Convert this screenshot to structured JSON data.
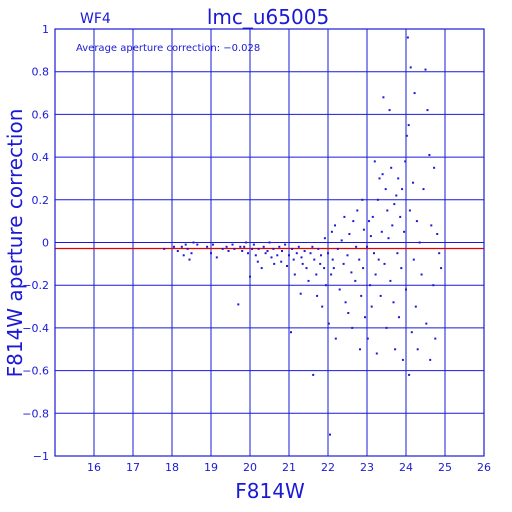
{
  "header": {
    "chip": "WF4",
    "title": "lmc_u65005"
  },
  "annotation": "Average aperture correction:  −0.028",
  "colors": {
    "axes": "#1a1ad6",
    "points": "#1a1ad6",
    "reference_line": "#e60000"
  },
  "chart_data": {
    "type": "scatter",
    "title": "lmc_u65005",
    "subtitle": "WF4",
    "xlabel": "F814W",
    "ylabel": "F814W aperture correction",
    "xlim": [
      15,
      26
    ],
    "ylim": [
      -1,
      1
    ],
    "x_ticks": [
      16,
      17,
      18,
      19,
      20,
      21,
      22,
      23,
      24,
      25,
      26
    ],
    "y_ticks": [
      -1,
      -0.8,
      -0.6,
      -0.4,
      -0.2,
      0,
      0.2,
      0.4,
      0.6,
      0.8,
      1
    ],
    "y_tick_labels": [
      "−1",
      "−0.8",
      "−0.6",
      "−0.4",
      "−0.2",
      "0",
      "0.2",
      "0.4",
      "0.6",
      "0.8",
      "1"
    ],
    "grid": true,
    "reference_lines": [
      0,
      -0.028
    ],
    "average_aperture_correction": -0.028,
    "points": [
      [
        17.8,
        -0.03
      ],
      [
        18.05,
        -0.02
      ],
      [
        18.15,
        -0.04
      ],
      [
        18.25,
        -0.02
      ],
      [
        18.3,
        -0.06
      ],
      [
        18.35,
        -0.01
      ],
      [
        18.4,
        -0.03
      ],
      [
        18.45,
        -0.08
      ],
      [
        18.5,
        -0.05
      ],
      [
        18.55,
        0.0
      ],
      [
        18.65,
        -0.01
      ],
      [
        18.9,
        -0.02
      ],
      [
        19.0,
        -0.05
      ],
      [
        19.05,
        -0.01
      ],
      [
        19.15,
        -0.07
      ],
      [
        19.3,
        -0.03
      ],
      [
        19.4,
        -0.02
      ],
      [
        19.45,
        -0.04
      ],
      [
        19.55,
        -0.01
      ],
      [
        19.6,
        -0.03
      ],
      [
        19.7,
        -0.29
      ],
      [
        19.75,
        -0.02
      ],
      [
        19.8,
        -0.04
      ],
      [
        19.85,
        -0.02
      ],
      [
        19.9,
        0.0
      ],
      [
        19.95,
        -0.05
      ],
      [
        20.0,
        -0.16
      ],
      [
        20.05,
        -0.03
      ],
      [
        20.1,
        -0.01
      ],
      [
        20.15,
        -0.06
      ],
      [
        20.2,
        -0.09
      ],
      [
        20.22,
        -0.03
      ],
      [
        20.3,
        -0.12
      ],
      [
        20.35,
        -0.02
      ],
      [
        20.4,
        -0.05
      ],
      [
        20.45,
        -0.04
      ],
      [
        20.5,
        0.0
      ],
      [
        20.55,
        -0.07
      ],
      [
        20.6,
        -0.03
      ],
      [
        20.62,
        -0.1
      ],
      [
        20.7,
        -0.06
      ],
      [
        20.75,
        -0.02
      ],
      [
        20.8,
        -0.09
      ],
      [
        20.82,
        -0.04
      ],
      [
        20.9,
        -0.01
      ],
      [
        20.95,
        -0.11
      ],
      [
        21.0,
        -0.06
      ],
      [
        21.05,
        -0.42
      ],
      [
        21.08,
        -0.03
      ],
      [
        21.12,
        -0.08
      ],
      [
        21.15,
        -0.15
      ],
      [
        21.2,
        -0.05
      ],
      [
        21.25,
        -0.02
      ],
      [
        21.3,
        -0.24
      ],
      [
        21.32,
        -0.07
      ],
      [
        21.35,
        -0.1
      ],
      [
        21.4,
        -0.04
      ],
      [
        21.45,
        -0.12
      ],
      [
        21.5,
        -0.18
      ],
      [
        21.55,
        -0.05
      ],
      [
        21.6,
        -0.02
      ],
      [
        21.62,
        -0.62
      ],
      [
        21.65,
        -0.08
      ],
      [
        21.7,
        -0.15
      ],
      [
        21.72,
        -0.25
      ],
      [
        21.75,
        -0.03
      ],
      [
        21.8,
        -0.1
      ],
      [
        21.82,
        -0.06
      ],
      [
        21.85,
        -0.3
      ],
      [
        21.9,
        -0.12
      ],
      [
        21.92,
        0.02
      ],
      [
        21.95,
        -0.2
      ],
      [
        22.0,
        -0.05
      ],
      [
        22.02,
        -0.38
      ],
      [
        22.05,
        -0.9
      ],
      [
        22.08,
        -0.15
      ],
      [
        22.1,
        0.05
      ],
      [
        22.12,
        -0.08
      ],
      [
        22.15,
        -0.12
      ],
      [
        22.18,
        0.08
      ],
      [
        22.2,
        -0.45
      ],
      [
        22.25,
        -0.03
      ],
      [
        22.3,
        -0.22
      ],
      [
        22.35,
        0.01
      ],
      [
        22.4,
        -0.1
      ],
      [
        22.42,
        0.12
      ],
      [
        22.45,
        -0.28
      ],
      [
        22.5,
        -0.06
      ],
      [
        22.52,
        -0.33
      ],
      [
        22.55,
        0.04
      ],
      [
        22.6,
        -0.14
      ],
      [
        22.62,
        -0.4
      ],
      [
        22.65,
        0.1
      ],
      [
        22.7,
        -0.18
      ],
      [
        22.72,
        -0.02
      ],
      [
        22.75,
        0.15
      ],
      [
        22.8,
        -0.08
      ],
      [
        22.82,
        -0.5
      ],
      [
        22.85,
        -0.25
      ],
      [
        22.88,
        0.2
      ],
      [
        22.9,
        -0.12
      ],
      [
        22.92,
        0.06
      ],
      [
        22.95,
        -0.35
      ],
      [
        23.0,
        -0.02
      ],
      [
        23.02,
        -0.45
      ],
      [
        23.05,
        0.1
      ],
      [
        23.08,
        -0.2
      ],
      [
        23.1,
        0.03
      ],
      [
        23.12,
        -0.3
      ],
      [
        23.15,
        0.12
      ],
      [
        23.18,
        -0.05
      ],
      [
        23.2,
        0.38
      ],
      [
        23.22,
        -0.15
      ],
      [
        23.25,
        -0.52
      ],
      [
        23.28,
        0.2
      ],
      [
        23.3,
        -0.08
      ],
      [
        23.32,
        0.3
      ],
      [
        23.35,
        -0.25
      ],
      [
        23.38,
        0.05
      ],
      [
        23.4,
        0.32
      ],
      [
        23.42,
        0.68
      ],
      [
        23.45,
        -0.1
      ],
      [
        23.48,
        0.25
      ],
      [
        23.5,
        -0.4
      ],
      [
        23.52,
        0.15
      ],
      [
        23.55,
        0.02
      ],
      [
        23.58,
        0.62
      ],
      [
        23.6,
        -0.18
      ],
      [
        23.62,
        0.35
      ],
      [
        23.65,
        0.08
      ],
      [
        23.68,
        -0.28
      ],
      [
        23.7,
        0.18
      ],
      [
        23.72,
        -0.5
      ],
      [
        23.75,
        0.22
      ],
      [
        23.78,
        -0.05
      ],
      [
        23.8,
        0.3
      ],
      [
        23.82,
        -0.35
      ],
      [
        23.85,
        0.12
      ],
      [
        23.88,
        -0.12
      ],
      [
        23.9,
        0.25
      ],
      [
        23.92,
        -0.55
      ],
      [
        23.95,
        0.05
      ],
      [
        23.98,
        0.38
      ],
      [
        24.0,
        -0.22
      ],
      [
        24.02,
        0.5
      ],
      [
        24.05,
        0.96
      ],
      [
        24.07,
        0.55
      ],
      [
        24.08,
        -0.62
      ],
      [
        24.1,
        0.15
      ],
      [
        24.12,
        0.82
      ],
      [
        24.15,
        -0.42
      ],
      [
        24.18,
        0.28
      ],
      [
        24.2,
        -0.08
      ],
      [
        24.22,
        0.7
      ],
      [
        24.25,
        -0.3
      ],
      [
        24.28,
        0.1
      ],
      [
        24.3,
        -0.5
      ],
      [
        24.35,
        0.0
      ],
      [
        24.4,
        -0.15
      ],
      [
        24.45,
        0.25
      ],
      [
        24.5,
        0.81
      ],
      [
        24.52,
        -0.38
      ],
      [
        24.55,
        0.62
      ],
      [
        24.6,
        0.41
      ],
      [
        24.62,
        -0.55
      ],
      [
        24.65,
        0.08
      ],
      [
        24.7,
        -0.2
      ],
      [
        24.72,
        0.35
      ],
      [
        24.75,
        -0.45
      ],
      [
        24.8,
        0.04
      ],
      [
        24.85,
        -0.05
      ],
      [
        24.9,
        -0.12
      ]
    ]
  }
}
